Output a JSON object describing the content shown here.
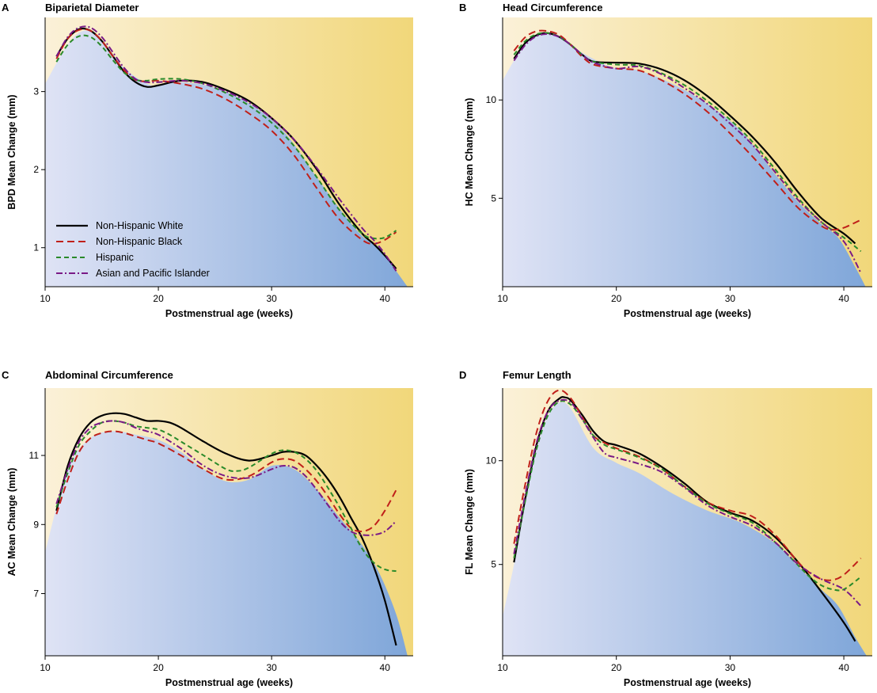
{
  "colors": {
    "white": "#000000",
    "black": "#c0201a",
    "hispanic": "#2a8a2a",
    "asian": "#7a1a86",
    "fill_top_left": "#fbf1d8",
    "fill_top_right": "#f1d77a",
    "fill_bottom_left": "#dfe3f5",
    "fill_bottom_right": "#7fa6d9"
  },
  "legend": [
    {
      "label": "Non-Hispanic White",
      "key": "white",
      "dash": "solid"
    },
    {
      "label": "Non-Hispanic Black",
      "key": "black",
      "dash": "dashed"
    },
    {
      "label": "Hispanic",
      "key": "hispanic",
      "dash": "dashed-short"
    },
    {
      "label": "Asian and Pacific Islander",
      "key": "asian",
      "dash": "dash-dot"
    }
  ],
  "chart_data": [
    {
      "type": "line",
      "letter": "A",
      "title": "Biparietal Diameter",
      "xlabel": "Postmenstrual age (weeks)",
      "ylabel": "BPD Mean Change (mm)",
      "xlim": [
        10,
        42.5
      ],
      "ylim": [
        0.5,
        3.95
      ],
      "xticks": [
        10,
        20,
        30,
        40
      ],
      "yticks": [
        1,
        2,
        3
      ],
      "legend_position": "bottom-left",
      "boundary": {
        "x": [
          10,
          12,
          13.5,
          15,
          17,
          19,
          20,
          22,
          25,
          28,
          31,
          34,
          36,
          38,
          39.5,
          41,
          42.5
        ],
        "y": [
          3.1,
          3.6,
          3.78,
          3.65,
          3.3,
          3.1,
          3.08,
          3.12,
          3.05,
          2.85,
          2.5,
          1.9,
          1.5,
          1.15,
          1.0,
          0.7,
          0.4
        ]
      },
      "series": [
        {
          "name": "Non-Hispanic White",
          "key": "white",
          "x": [
            11,
            12,
            13,
            14,
            15,
            16,
            17,
            18,
            19,
            20,
            22,
            24,
            26,
            28,
            30,
            32,
            34,
            36,
            38,
            39,
            40,
            41
          ],
          "y": [
            3.45,
            3.68,
            3.8,
            3.78,
            3.65,
            3.45,
            3.25,
            3.12,
            3.06,
            3.08,
            3.14,
            3.12,
            3.02,
            2.88,
            2.66,
            2.38,
            2.0,
            1.55,
            1.18,
            1.05,
            0.9,
            0.73
          ]
        },
        {
          "name": "Non-Hispanic Black",
          "key": "black",
          "x": [
            11,
            12,
            13,
            14,
            15,
            16,
            17,
            18,
            19,
            20,
            22,
            24,
            26,
            28,
            30,
            32,
            34,
            36,
            38,
            39,
            40,
            41
          ],
          "y": [
            3.42,
            3.68,
            3.79,
            3.78,
            3.65,
            3.45,
            3.27,
            3.15,
            3.13,
            3.14,
            3.1,
            3.03,
            2.9,
            2.72,
            2.5,
            2.18,
            1.76,
            1.36,
            1.1,
            1.05,
            1.1,
            1.2
          ]
        },
        {
          "name": "Hispanic",
          "key": "hispanic",
          "x": [
            11,
            12,
            13,
            14,
            15,
            16,
            17,
            18,
            19,
            20,
            22,
            24,
            26,
            28,
            30,
            32,
            34,
            36,
            38,
            39,
            40,
            41
          ],
          "y": [
            3.38,
            3.6,
            3.71,
            3.7,
            3.58,
            3.4,
            3.24,
            3.15,
            3.14,
            3.16,
            3.16,
            3.1,
            2.98,
            2.82,
            2.6,
            2.3,
            1.9,
            1.48,
            1.18,
            1.12,
            1.13,
            1.22
          ]
        },
        {
          "name": "Asian and Pacific Islander",
          "key": "asian",
          "x": [
            11,
            12,
            13,
            14,
            15,
            16,
            17,
            18,
            19,
            20,
            22,
            24,
            26,
            28,
            30,
            32,
            34,
            36,
            38,
            39,
            40,
            41
          ],
          "y": [
            3.45,
            3.7,
            3.82,
            3.82,
            3.7,
            3.5,
            3.3,
            3.16,
            3.12,
            3.12,
            3.14,
            3.1,
            3.0,
            2.86,
            2.66,
            2.38,
            2.02,
            1.62,
            1.25,
            1.1,
            0.92,
            0.7
          ]
        }
      ]
    },
    {
      "type": "line",
      "letter": "B",
      "title": "Head Circumference",
      "xlabel": "Postmenstrual age (weeks)",
      "ylabel": "HC Mean Change (mm)",
      "xlim": [
        10,
        42.5
      ],
      "ylim": [
        0.5,
        14.2
      ],
      "xticks": [
        10,
        20,
        30,
        40
      ],
      "yticks": [
        5,
        10
      ],
      "boundary": {
        "x": [
          10,
          12,
          13.5,
          15,
          17,
          19,
          20,
          22,
          25,
          28,
          31,
          34,
          36,
          38,
          39.5,
          41,
          42
        ],
        "y": [
          11.0,
          12.9,
          13.4,
          13.2,
          12.4,
          11.8,
          11.6,
          11.5,
          10.8,
          9.8,
          8.4,
          6.2,
          4.8,
          3.7,
          3.0,
          1.5,
          0.4
        ]
      },
      "series": [
        {
          "name": "Non-Hispanic White",
          "key": "white",
          "x": [
            11,
            12,
            13,
            14,
            15,
            16,
            17,
            18,
            20,
            22,
            24,
            26,
            28,
            30,
            32,
            34,
            36,
            38,
            40,
            41
          ],
          "y": [
            12.1,
            12.9,
            13.3,
            13.4,
            13.2,
            12.8,
            12.3,
            11.95,
            11.9,
            11.85,
            11.55,
            11.0,
            10.2,
            9.2,
            8.1,
            6.8,
            5.3,
            4.0,
            3.2,
            2.7
          ]
        },
        {
          "name": "Non-Hispanic Black",
          "key": "black",
          "x": [
            11,
            12,
            13,
            14,
            15,
            16,
            17,
            18,
            20,
            22,
            24,
            26,
            28,
            30,
            32,
            34,
            36,
            38,
            39,
            40,
            41.5
          ],
          "y": [
            12.5,
            13.2,
            13.5,
            13.5,
            13.3,
            12.8,
            12.2,
            11.8,
            11.6,
            11.5,
            11.0,
            10.3,
            9.4,
            8.3,
            7.1,
            5.8,
            4.5,
            3.6,
            3.4,
            3.5,
            3.9
          ]
        },
        {
          "name": "Hispanic",
          "key": "hispanic",
          "x": [
            11,
            12,
            13,
            14,
            15,
            16,
            17,
            18,
            20,
            22,
            24,
            26,
            28,
            30,
            32,
            34,
            36,
            38,
            40,
            41.5
          ],
          "y": [
            12.3,
            13.0,
            13.35,
            13.4,
            13.2,
            12.8,
            12.3,
            11.95,
            11.8,
            11.75,
            11.35,
            10.75,
            9.95,
            9.0,
            7.85,
            6.45,
            5.0,
            3.8,
            3.0,
            2.3
          ]
        },
        {
          "name": "Asian and Pacific Islander",
          "key": "asian",
          "x": [
            11,
            12,
            13,
            14,
            15,
            16,
            17,
            18,
            20,
            22,
            24,
            26,
            28,
            30,
            32,
            34,
            36,
            38,
            40,
            41.5
          ],
          "y": [
            12.0,
            12.8,
            13.25,
            13.35,
            13.2,
            12.8,
            12.3,
            11.9,
            11.6,
            11.7,
            11.3,
            10.6,
            9.8,
            8.8,
            7.7,
            6.3,
            4.9,
            3.8,
            2.8,
            1.2
          ]
        }
      ]
    },
    {
      "type": "line",
      "letter": "C",
      "title": "Abdominal Circumference",
      "xlabel": "Postmenstrual age (weeks)",
      "ylabel": "AC Mean Change (mm)",
      "xlim": [
        10,
        42.5
      ],
      "ylim": [
        5.2,
        12.95
      ],
      "xticks": [
        10,
        20,
        30,
        40
      ],
      "yticks": [
        7,
        9,
        11
      ],
      "boundary": {
        "x": [
          10,
          12,
          14,
          16,
          18,
          20,
          22,
          24,
          26,
          28,
          30,
          32,
          34,
          36,
          38,
          39.5,
          41,
          42
        ],
        "y": [
          8.2,
          10.6,
          11.5,
          11.7,
          11.6,
          11.45,
          11.1,
          10.6,
          10.25,
          10.3,
          10.7,
          10.6,
          10.0,
          9.2,
          8.4,
          7.6,
          6.4,
          5.2
        ]
      },
      "series": [
        {
          "name": "Non-Hispanic White",
          "key": "white",
          "x": [
            11,
            12,
            13,
            14,
            15,
            16,
            17,
            18,
            19,
            20,
            21,
            22,
            24,
            26,
            28,
            30,
            31,
            32,
            33,
            34,
            35,
            36,
            37,
            38,
            39,
            40,
            41
          ],
          "y": [
            9.4,
            10.7,
            11.5,
            11.95,
            12.15,
            12.22,
            12.2,
            12.1,
            12.0,
            12.0,
            11.95,
            11.8,
            11.4,
            11.05,
            10.85,
            11.0,
            11.1,
            11.1,
            11.0,
            10.7,
            10.3,
            9.8,
            9.2,
            8.6,
            7.8,
            6.8,
            5.5
          ]
        },
        {
          "name": "Non-Hispanic Black",
          "key": "black",
          "x": [
            11,
            12,
            13,
            14,
            15,
            16,
            17,
            18,
            19,
            20,
            22,
            24,
            26,
            28,
            30,
            31,
            32,
            33,
            34,
            35,
            36,
            37,
            38,
            39,
            40,
            41
          ],
          "y": [
            9.3,
            10.3,
            11.1,
            11.5,
            11.65,
            11.7,
            11.65,
            11.55,
            11.45,
            11.35,
            11.0,
            10.6,
            10.3,
            10.4,
            10.8,
            10.9,
            10.85,
            10.6,
            10.25,
            9.8,
            9.3,
            8.9,
            8.8,
            8.95,
            9.4,
            10.0
          ]
        },
        {
          "name": "Hispanic",
          "key": "hispanic",
          "x": [
            11,
            12,
            13,
            14,
            15,
            16,
            17,
            18,
            19,
            20,
            21,
            22,
            24,
            26,
            27,
            28,
            30,
            31,
            32,
            33,
            34,
            35,
            36,
            37,
            38,
            39,
            40,
            41
          ],
          "y": [
            9.5,
            10.5,
            11.3,
            11.7,
            11.95,
            12.0,
            11.95,
            11.85,
            11.8,
            11.75,
            11.6,
            11.4,
            11.0,
            10.6,
            10.55,
            10.65,
            11.05,
            11.15,
            11.1,
            10.9,
            10.55,
            10.05,
            9.5,
            8.9,
            8.3,
            7.9,
            7.7,
            7.65
          ]
        },
        {
          "name": "Asian and Pacific Islander",
          "key": "asian",
          "x": [
            11,
            12,
            13,
            14,
            15,
            16,
            17,
            18,
            19,
            20,
            22,
            24,
            26,
            28,
            30,
            31,
            32,
            33,
            34,
            35,
            36,
            37,
            38,
            39,
            40,
            41
          ],
          "y": [
            9.6,
            10.6,
            11.4,
            11.8,
            11.95,
            12.0,
            11.95,
            11.8,
            11.7,
            11.6,
            11.2,
            10.7,
            10.4,
            10.35,
            10.6,
            10.7,
            10.65,
            10.4,
            10.0,
            9.55,
            9.1,
            8.8,
            8.7,
            8.7,
            8.8,
            9.1
          ]
        }
      ]
    },
    {
      "type": "line",
      "letter": "D",
      "title": "Femur Length",
      "xlabel": "Postmenstrual age (weeks)",
      "ylabel": "FL Mean Change (mm)",
      "xlim": [
        10,
        42.5
      ],
      "ylim": [
        0.6,
        13.5
      ],
      "xticks": [
        10,
        20,
        30,
        40
      ],
      "yticks": [
        5,
        10
      ],
      "boundary": {
        "x": [
          10,
          11,
          12,
          13,
          14,
          15,
          16,
          18,
          20,
          22,
          25,
          28,
          31,
          34,
          36,
          38,
          39.5,
          41,
          42
        ],
        "y": [
          2.5,
          5.0,
          8.0,
          10.6,
          12.2,
          12.8,
          12.5,
          10.6,
          9.9,
          9.4,
          8.4,
          7.6,
          7.0,
          6.0,
          4.9,
          3.8,
          3.0,
          1.5,
          0.6
        ]
      },
      "series": [
        {
          "name": "Non-Hispanic White",
          "key": "white",
          "x": [
            11,
            12,
            13,
            14,
            15,
            15.5,
            16,
            17,
            18,
            19,
            20,
            22,
            24,
            26,
            28,
            30,
            32,
            34,
            36,
            38,
            40,
            41
          ],
          "y": [
            5.1,
            8.2,
            10.8,
            12.4,
            13.0,
            13.05,
            12.9,
            12.2,
            11.4,
            10.9,
            10.75,
            10.35,
            9.7,
            8.9,
            8.0,
            7.5,
            7.1,
            6.3,
            5.1,
            3.7,
            2.2,
            1.3
          ]
        },
        {
          "name": "Non-Hispanic Black",
          "key": "black",
          "x": [
            11,
            12,
            13,
            14,
            15,
            16,
            17,
            18,
            19,
            20,
            22,
            24,
            26,
            28,
            30,
            32,
            34,
            36,
            37,
            38,
            39,
            40,
            41.5
          ],
          "y": [
            6.0,
            8.9,
            11.4,
            12.9,
            13.4,
            13.0,
            12.1,
            11.2,
            10.85,
            10.6,
            10.2,
            9.6,
            8.75,
            8.0,
            7.6,
            7.3,
            6.4,
            5.1,
            4.6,
            4.3,
            4.25,
            4.5,
            5.3
          ]
        },
        {
          "name": "Hispanic",
          "key": "hispanic",
          "x": [
            11,
            12,
            13,
            14,
            15,
            16,
            17,
            18,
            19,
            20,
            22,
            24,
            26,
            28,
            30,
            32,
            34,
            36,
            37,
            38,
            39,
            40,
            41.5
          ],
          "y": [
            5.3,
            8.1,
            10.6,
            12.2,
            12.85,
            12.7,
            12.0,
            11.2,
            10.75,
            10.55,
            10.15,
            9.6,
            8.75,
            7.95,
            7.45,
            7.0,
            6.05,
            4.95,
            4.4,
            4.0,
            3.8,
            3.8,
            4.4
          ]
        },
        {
          "name": "Asian and Pacific Islander",
          "key": "asian",
          "x": [
            11,
            12,
            13,
            14,
            15,
            16,
            17,
            18,
            19,
            20,
            22,
            24,
            26,
            28,
            30,
            32,
            34,
            36,
            38,
            40,
            41.5
          ],
          "y": [
            5.5,
            8.4,
            10.9,
            12.4,
            12.9,
            12.8,
            12.0,
            11.1,
            10.35,
            10.15,
            9.85,
            9.45,
            8.7,
            7.85,
            7.3,
            6.85,
            6.05,
            5.0,
            4.3,
            3.8,
            3.0
          ]
        }
      ]
    }
  ]
}
